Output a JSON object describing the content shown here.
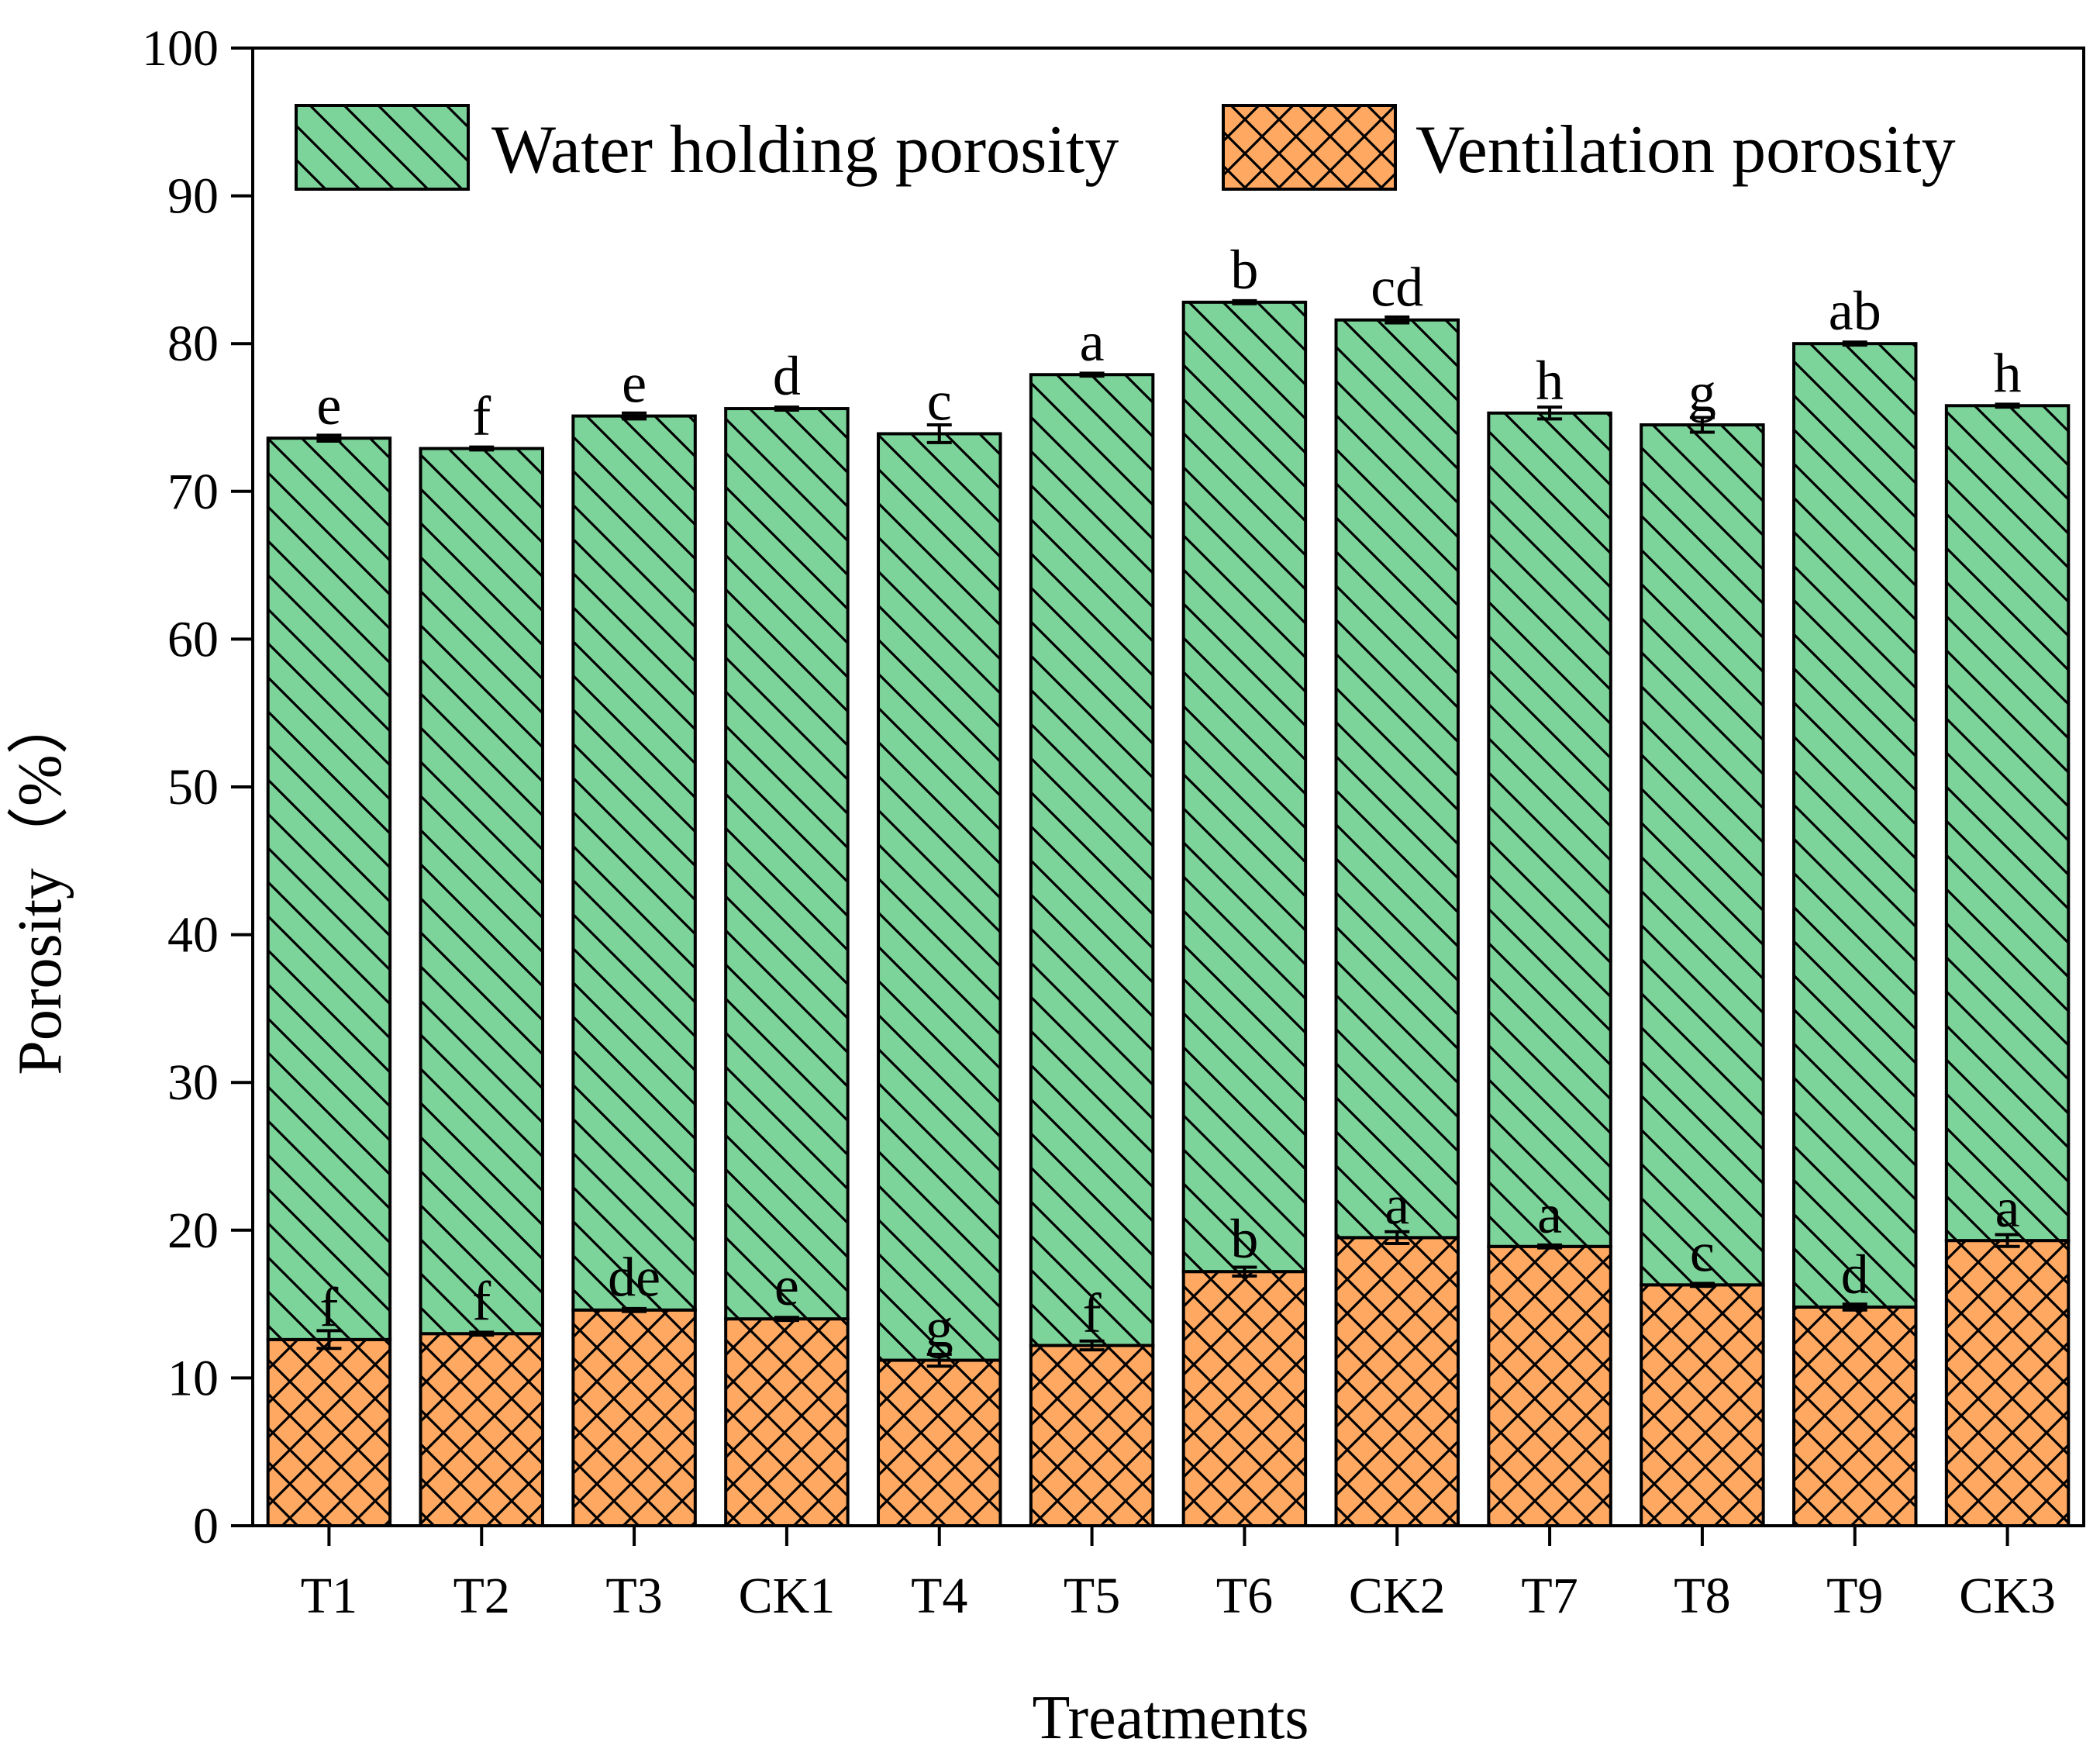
{
  "chart_data": {
    "type": "bar",
    "stacked": true,
    "title": "",
    "xlabel": "Treatments",
    "ylabel": "Porosity（%）",
    "ylim": [
      0,
      100
    ],
    "yticks": [
      0,
      10,
      20,
      30,
      40,
      50,
      60,
      70,
      80,
      90,
      100
    ],
    "grid": false,
    "legend_position": "top",
    "categories": [
      "T1",
      "T2",
      "T3",
      "CK1",
      "T4",
      "T5",
      "T6",
      "CK2",
      "T7",
      "T8",
      "T9",
      "CK3"
    ],
    "series": [
      {
        "name": "Ventilation porosity",
        "color": "#FFA862",
        "pattern": "crosshatch",
        "values": [
          12.6,
          13.0,
          14.6,
          14.0,
          11.2,
          12.2,
          17.2,
          19.5,
          18.9,
          16.3,
          14.8,
          19.3
        ],
        "errors": [
          0.6,
          0.1,
          0.1,
          0.1,
          0.4,
          0.3,
          0.3,
          0.4,
          0.1,
          0.1,
          0.2,
          0.4
        ],
        "significance": [
          "f",
          "f",
          "de",
          "e",
          "g",
          "f",
          "b",
          "a",
          "a",
          "c",
          "d",
          "a"
        ]
      },
      {
        "name": "Water holding porosity",
        "color": "#7DD49B",
        "pattern": "diagonal",
        "values": [
          61.0,
          59.9,
          60.5,
          61.6,
          62.7,
          65.7,
          65.6,
          62.1,
          56.4,
          58.2,
          65.2,
          56.5
        ],
        "totals": [
          73.6,
          72.9,
          75.1,
          75.6,
          73.9,
          77.9,
          82.8,
          81.6,
          75.3,
          74.5,
          80.0,
          75.8
        ],
        "errors": [
          0.2,
          0.1,
          0.2,
          0.1,
          0.6,
          0.1,
          0.1,
          0.2,
          0.4,
          0.5,
          0.1,
          0.1
        ],
        "significance": [
          "e",
          "f",
          "e",
          "d",
          "c",
          "a",
          "b",
          "cd",
          "h",
          "g",
          "ab",
          "h"
        ]
      }
    ]
  }
}
